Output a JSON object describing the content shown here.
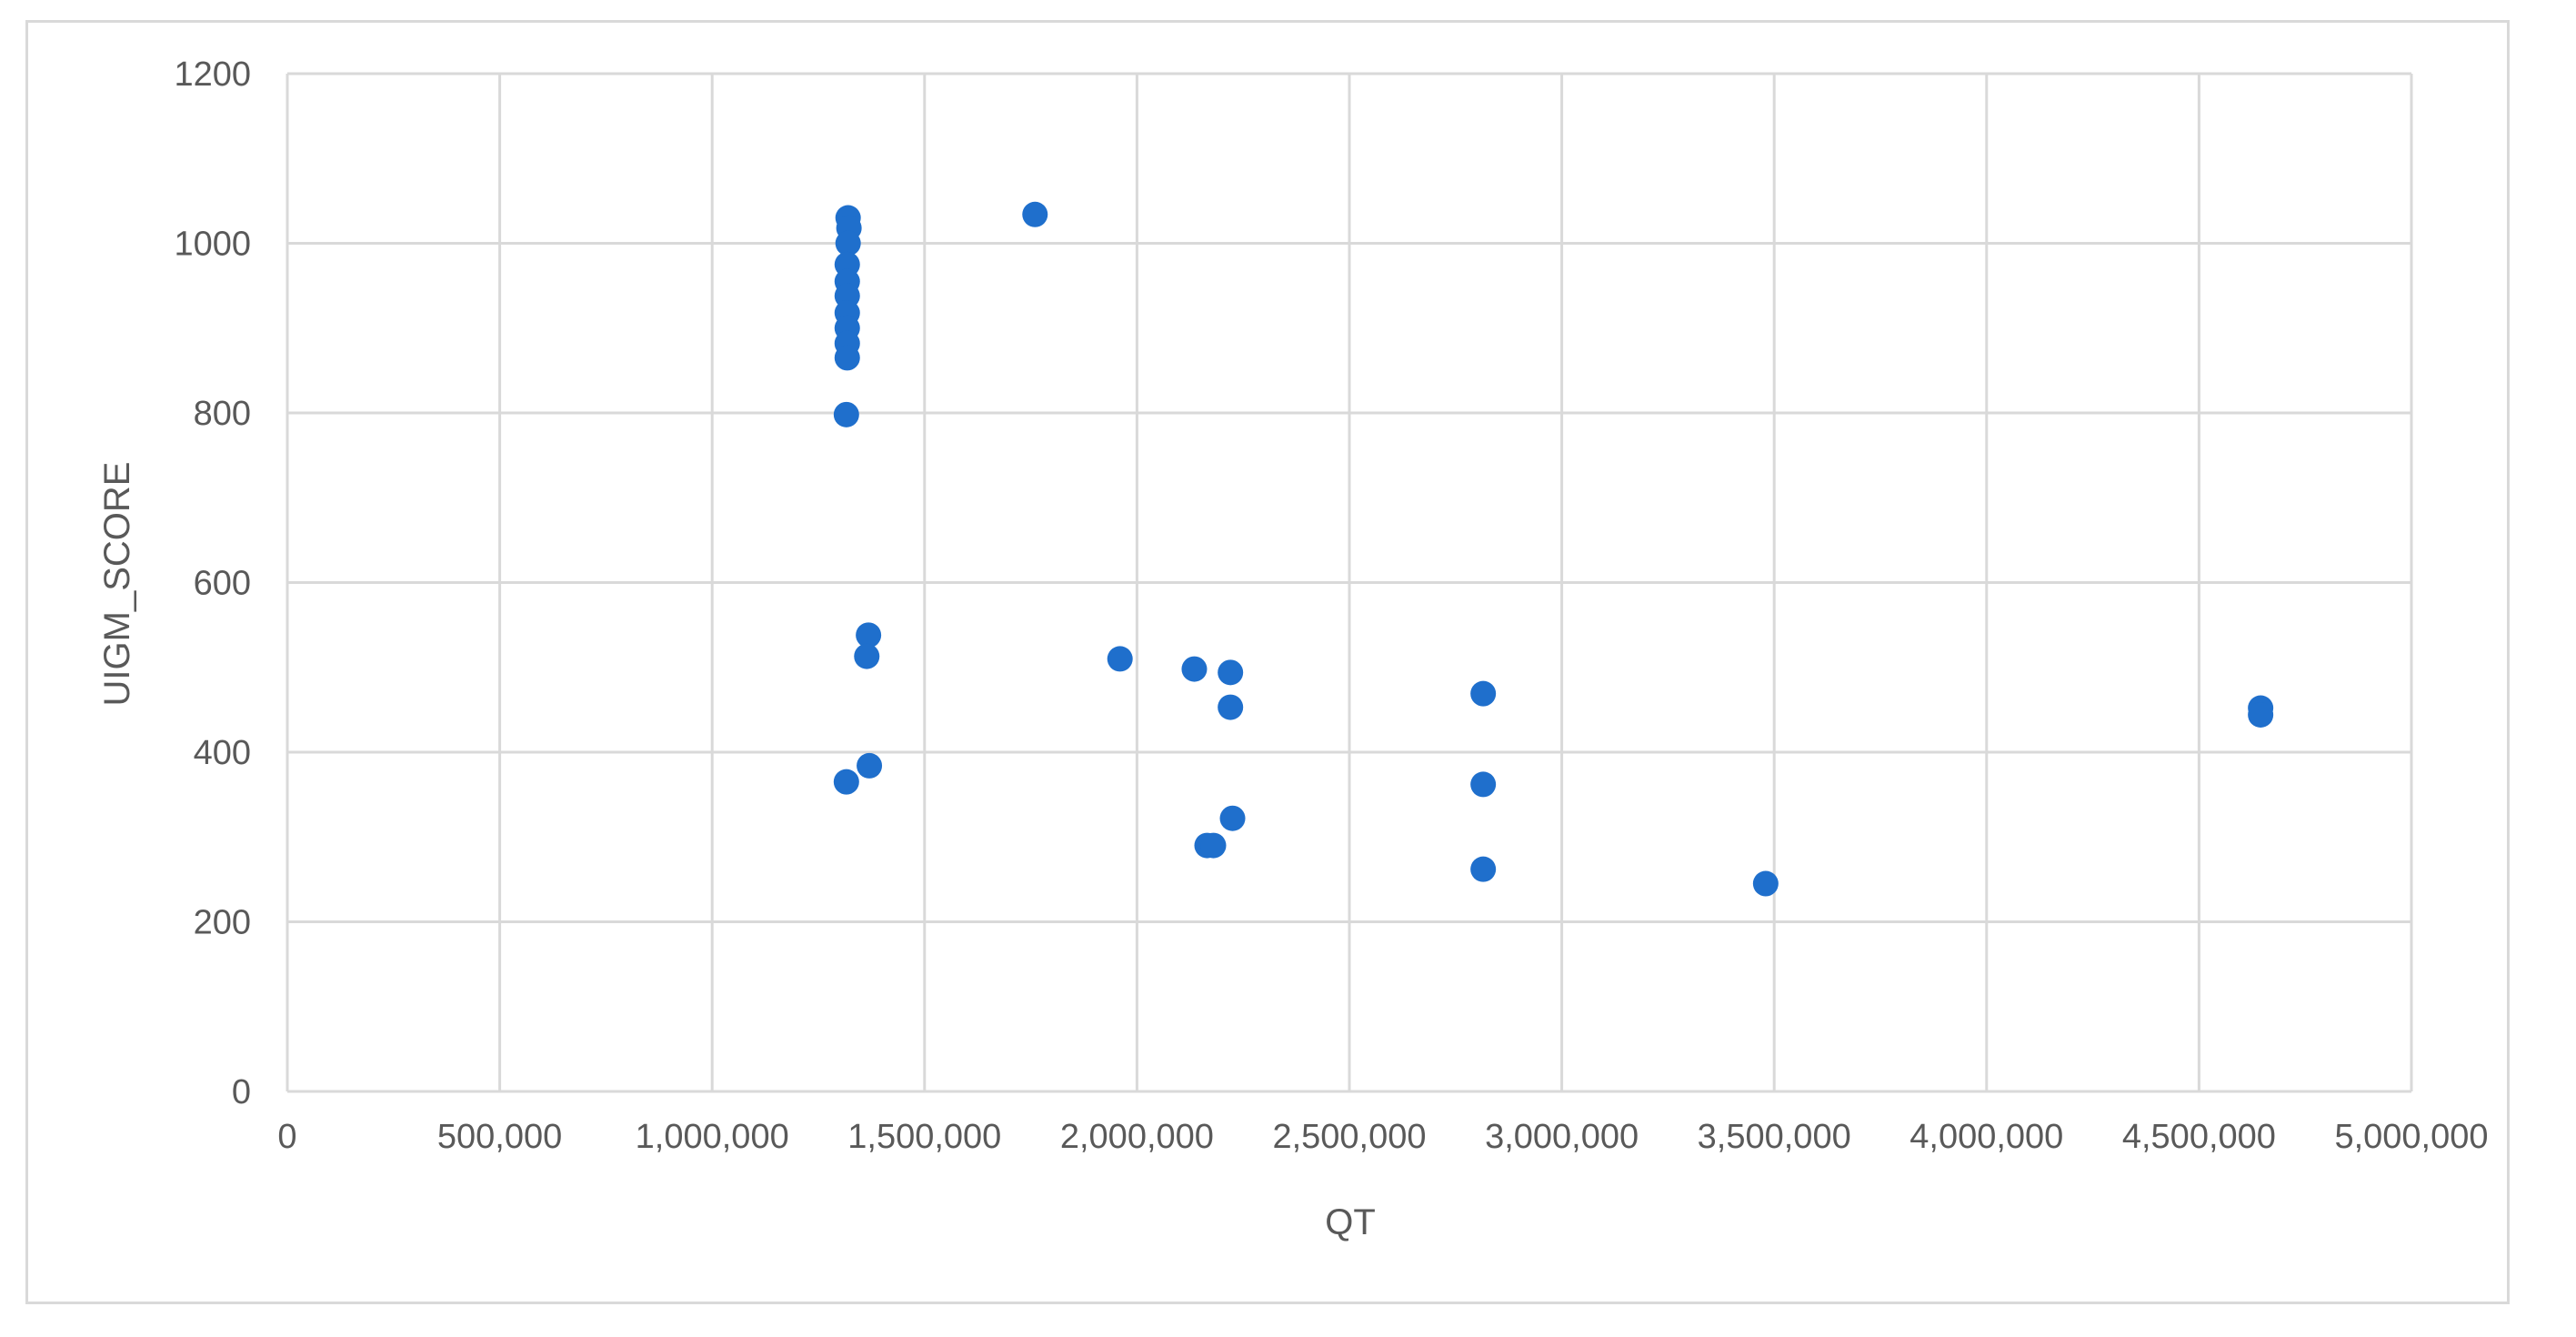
{
  "chart_data": {
    "type": "scatter",
    "title": "",
    "xlabel": "QT",
    "ylabel": "UIGM_SCORE",
    "xlim": [
      0,
      5000000
    ],
    "ylim": [
      0,
      1200
    ],
    "x_ticks": [
      0,
      500000,
      1000000,
      1500000,
      2000000,
      2500000,
      3000000,
      3500000,
      4000000,
      4500000,
      5000000
    ],
    "x_tick_labels": [
      "0",
      "500,000",
      "1,000,000",
      "1,500,000",
      "2,000,000",
      "2,500,000",
      "3,000,000",
      "3,500,000",
      "4,000,000",
      "4,500,000",
      "5,000,000"
    ],
    "y_ticks": [
      0,
      200,
      400,
      600,
      800,
      1000,
      1200
    ],
    "y_tick_labels": [
      "0",
      "200",
      "400",
      "600",
      "800",
      "1000",
      "1200"
    ],
    "grid": true,
    "legend": "none",
    "marker_color": "#1f6fcc",
    "points": [
      {
        "x": 1320000,
        "y": 1030
      },
      {
        "x": 1322000,
        "y": 1018
      },
      {
        "x": 1320000,
        "y": 1000
      },
      {
        "x": 1318000,
        "y": 975
      },
      {
        "x": 1318000,
        "y": 955
      },
      {
        "x": 1318000,
        "y": 938
      },
      {
        "x": 1318000,
        "y": 918
      },
      {
        "x": 1318000,
        "y": 900
      },
      {
        "x": 1318000,
        "y": 882
      },
      {
        "x": 1318000,
        "y": 865
      },
      {
        "x": 1316000,
        "y": 798
      },
      {
        "x": 1368000,
        "y": 538
      },
      {
        "x": 1364000,
        "y": 513
      },
      {
        "x": 1370000,
        "y": 384
      },
      {
        "x": 1316000,
        "y": 365
      },
      {
        "x": 1760000,
        "y": 1034
      },
      {
        "x": 1960000,
        "y": 510
      },
      {
        "x": 2135000,
        "y": 498
      },
      {
        "x": 2220000,
        "y": 494
      },
      {
        "x": 2220000,
        "y": 453
      },
      {
        "x": 2225000,
        "y": 322
      },
      {
        "x": 2165000,
        "y": 290
      },
      {
        "x": 2180000,
        "y": 290
      },
      {
        "x": 2815000,
        "y": 469
      },
      {
        "x": 2815000,
        "y": 362
      },
      {
        "x": 2815000,
        "y": 262
      },
      {
        "x": 3480000,
        "y": 245
      },
      {
        "x": 4645000,
        "y": 452
      },
      {
        "x": 4645000,
        "y": 444
      }
    ]
  }
}
